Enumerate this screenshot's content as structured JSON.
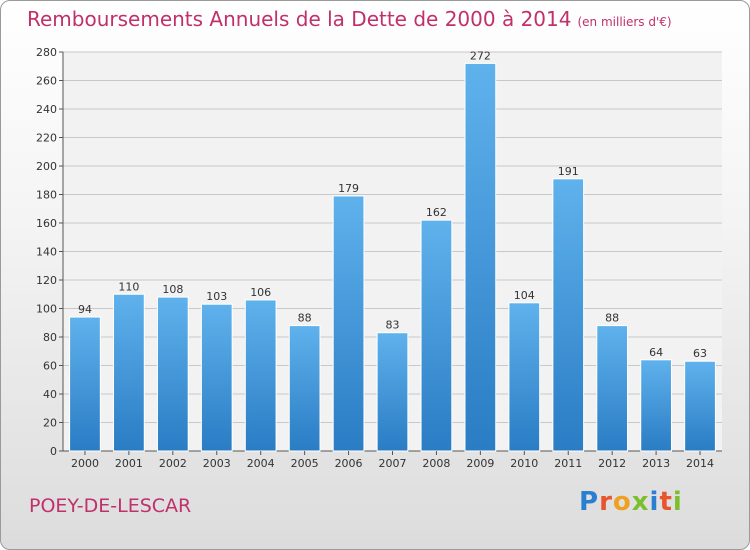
{
  "chart_data": {
    "type": "bar",
    "title": "Remboursements Annuels de la Dette de 2000 à 2014",
    "subtitle": "(en milliers d'€)",
    "categories": [
      "2000",
      "2001",
      "2002",
      "2003",
      "2004",
      "2005",
      "2006",
      "2007",
      "2008",
      "2009",
      "2010",
      "2011",
      "2012",
      "2013",
      "2014"
    ],
    "values": [
      94,
      110,
      108,
      103,
      106,
      88,
      179,
      83,
      162,
      272,
      104,
      191,
      88,
      64,
      63
    ],
    "ylim": [
      0,
      280
    ],
    "yticks": [
      0,
      20,
      40,
      60,
      80,
      100,
      120,
      140,
      160,
      180,
      200,
      220,
      240,
      260,
      280
    ],
    "grid": true,
    "bar_color": "#3a8fd8"
  },
  "footer": {
    "commune": "POEY-DE-LESCAR",
    "logo_letters": [
      "P",
      "r",
      "o",
      "x",
      "i",
      "t",
      "i"
    ],
    "logo_colors": [
      "#2b7fd1",
      "#e8542c",
      "#f0a020",
      "#7cbf2e",
      "#2b7fd1",
      "#e8542c",
      "#7cbf2e"
    ]
  }
}
